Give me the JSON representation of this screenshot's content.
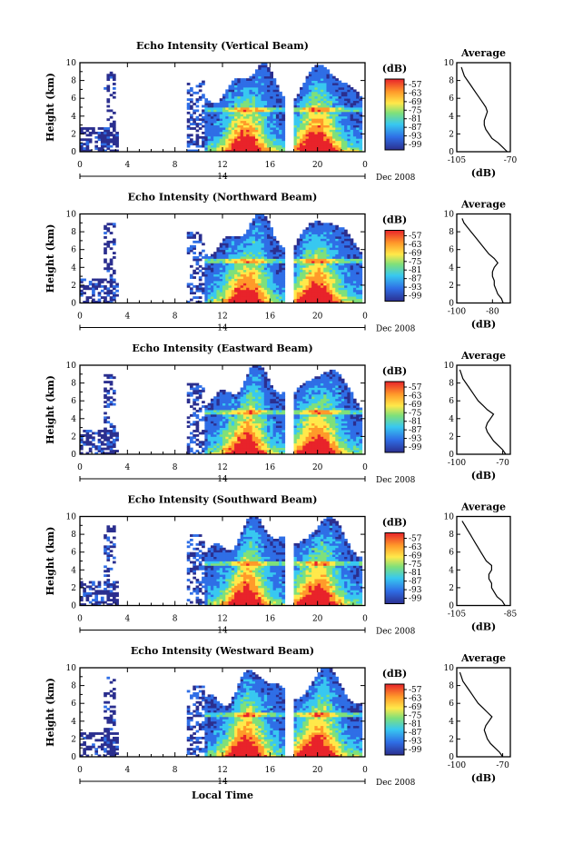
{
  "figure": {
    "x_axis_label": "Local Time",
    "colorbar_unit": "(dB)",
    "colorbar_ticks": [
      "-57",
      "-63",
      "-69",
      "-75",
      "-81",
      "-87",
      "-93",
      "-99"
    ],
    "colors": {
      "dark_blue": "#2b2f8f",
      "blue": "#2f6ee6",
      "cyan": "#38c8f0",
      "green": "#7fe07a",
      "yellow": "#ffe94a",
      "orange": "#ff9a2a",
      "red": "#e8232a"
    }
  },
  "chart_data": [
    {
      "type": "heatmap",
      "title": "Echo Intensity (Vertical Beam)",
      "ylabel": "Height (km)",
      "ylim": [
        0,
        10
      ],
      "yticks": [
        "0",
        "2",
        "4",
        "6",
        "8",
        "10"
      ],
      "xlim": [
        0,
        24
      ],
      "xticks": [
        "0",
        "4",
        "8",
        "12",
        "16",
        "20",
        "0"
      ],
      "date_day": "14",
      "date_month": "Dec 2008",
      "colorbar_range_db": [
        -99,
        -57
      ],
      "profile": {
        "title": "Average",
        "xlabel": "(dB)",
        "xlim": [
          -105,
          -70
        ],
        "xticks": [
          "-105",
          "-70"
        ],
        "yticks": [
          "0",
          "2",
          "4",
          "6",
          "8",
          "10"
        ],
        "heights": [
          0,
          0.5,
          1,
          1.5,
          2,
          2.5,
          3,
          3.5,
          4,
          4.5,
          5,
          5.5,
          6,
          6.5,
          7,
          7.5,
          8,
          8.5,
          9,
          9.5
        ],
        "values": [
          -72,
          -75,
          -78,
          -82,
          -84,
          -86,
          -87,
          -87,
          -86,
          -85,
          -86,
          -88,
          -90,
          -92,
          -94,
          -96,
          -98,
          -100,
          -101,
          -102
        ]
      }
    },
    {
      "type": "heatmap",
      "title": "Echo Intensity (Northward Beam)",
      "ylabel": "Height (km)",
      "ylim": [
        0,
        10
      ],
      "yticks": [
        "0",
        "2",
        "4",
        "6",
        "8",
        "10"
      ],
      "xlim": [
        0,
        24
      ],
      "xticks": [
        "0",
        "4",
        "8",
        "12",
        "16",
        "20",
        "0"
      ],
      "date_day": "14",
      "date_month": "Dec 2008",
      "colorbar_range_db": [
        -99,
        -57
      ],
      "profile": {
        "title": "Average",
        "xlabel": "(dB)",
        "xlim": [
          -100,
          -70
        ],
        "xticks": [
          "-100",
          "-80"
        ],
        "yticks": [
          "0",
          "2",
          "4",
          "6",
          "8",
          "10"
        ],
        "heights": [
          0,
          0.5,
          1,
          1.5,
          2,
          2.5,
          3,
          3.5,
          4,
          4.5,
          5,
          5.5,
          6,
          6.5,
          7,
          7.5,
          8,
          8.5,
          9,
          9.5
        ],
        "values": [
          -74,
          -75,
          -77,
          -78,
          -79,
          -79,
          -80,
          -80,
          -79,
          -77,
          -79,
          -82,
          -84,
          -86,
          -88,
          -90,
          -92,
          -94,
          -96,
          -97
        ]
      }
    },
    {
      "type": "heatmap",
      "title": "Echo Intensity (Eastward Beam)",
      "ylabel": "Height (km)",
      "ylim": [
        0,
        10
      ],
      "yticks": [
        "0",
        "2",
        "4",
        "6",
        "8",
        "10"
      ],
      "xlim": [
        0,
        24
      ],
      "xticks": [
        "0",
        "4",
        "8",
        "12",
        "16",
        "20",
        "0"
      ],
      "date_day": "14",
      "date_month": "Dec 2008",
      "colorbar_range_db": [
        -99,
        -57
      ],
      "profile": {
        "title": "Average",
        "xlabel": "(dB)",
        "xlim": [
          -100,
          -65
        ],
        "xticks": [
          "-100",
          "-70"
        ],
        "yticks": [
          "0",
          "2",
          "4",
          "6",
          "8",
          "10"
        ],
        "heights": [
          0,
          0.5,
          1,
          1.5,
          2,
          2.5,
          3,
          3.5,
          4,
          4.5,
          5,
          5.5,
          6,
          6.5,
          7,
          7.5,
          8,
          8.5,
          9,
          9.5
        ],
        "values": [
          -68,
          -70,
          -73,
          -76,
          -78,
          -80,
          -81,
          -80,
          -78,
          -76,
          -80,
          -83,
          -86,
          -88,
          -90,
          -92,
          -94,
          -96,
          -97,
          -98
        ]
      }
    },
    {
      "type": "heatmap",
      "title": "Echo Intensity (Southward Beam)",
      "ylabel": "Height (km)",
      "ylim": [
        0,
        10
      ],
      "yticks": [
        "0",
        "2",
        "4",
        "6",
        "8",
        "10"
      ],
      "xlim": [
        0,
        24
      ],
      "xticks": [
        "0",
        "4",
        "8",
        "12",
        "16",
        "20",
        "0"
      ],
      "date_day": "14",
      "date_month": "Dec 2008",
      "colorbar_range_db": [
        -99,
        -57
      ],
      "profile": {
        "title": "Average",
        "xlabel": "(dB)",
        "xlim": [
          -105,
          -85
        ],
        "xticks": [
          "-105",
          "-85"
        ],
        "yticks": [
          "0",
          "2",
          "4",
          "6",
          "8",
          "10"
        ],
        "heights": [
          0,
          0.5,
          1,
          1.5,
          2,
          2.5,
          3,
          3.5,
          4,
          4.5,
          5,
          5.5,
          6,
          6.5,
          7,
          7.5,
          8,
          8.5,
          9,
          9.5
        ],
        "values": [
          -87,
          -88,
          -90,
          -91,
          -92,
          -92,
          -93,
          -93,
          -92,
          -92,
          -94,
          -95,
          -96,
          -97,
          -98,
          -99,
          -100,
          -101,
          -102,
          -103
        ]
      }
    },
    {
      "type": "heatmap",
      "title": "Echo Intensity (Westward Beam)",
      "ylabel": "Height (km)",
      "ylim": [
        0,
        10
      ],
      "yticks": [
        "0",
        "2",
        "4",
        "6",
        "8",
        "10"
      ],
      "xlim": [
        0,
        24
      ],
      "xticks": [
        "0",
        "4",
        "8",
        "12",
        "16",
        "20",
        "0"
      ],
      "date_day": "14",
      "date_month": "Dec 2008",
      "colorbar_range_db": [
        -99,
        -57
      ],
      "profile": {
        "title": "Average",
        "xlabel": "(dB)",
        "xlim": [
          -100,
          -65
        ],
        "xticks": [
          "-100",
          "-70"
        ],
        "yticks": [
          "0",
          "2",
          "4",
          "6",
          "8",
          "10"
        ],
        "heights": [
          0,
          0.5,
          1,
          1.5,
          2,
          2.5,
          3,
          3.5,
          4,
          4.5,
          5,
          5.5,
          6,
          6.5,
          7,
          7.5,
          8,
          8.5,
          9,
          9.5
        ],
        "values": [
          -70,
          -72,
          -75,
          -78,
          -80,
          -81,
          -82,
          -81,
          -79,
          -77,
          -80,
          -83,
          -86,
          -88,
          -90,
          -92,
          -94,
          -96,
          -97,
          -98
        ]
      }
    }
  ]
}
